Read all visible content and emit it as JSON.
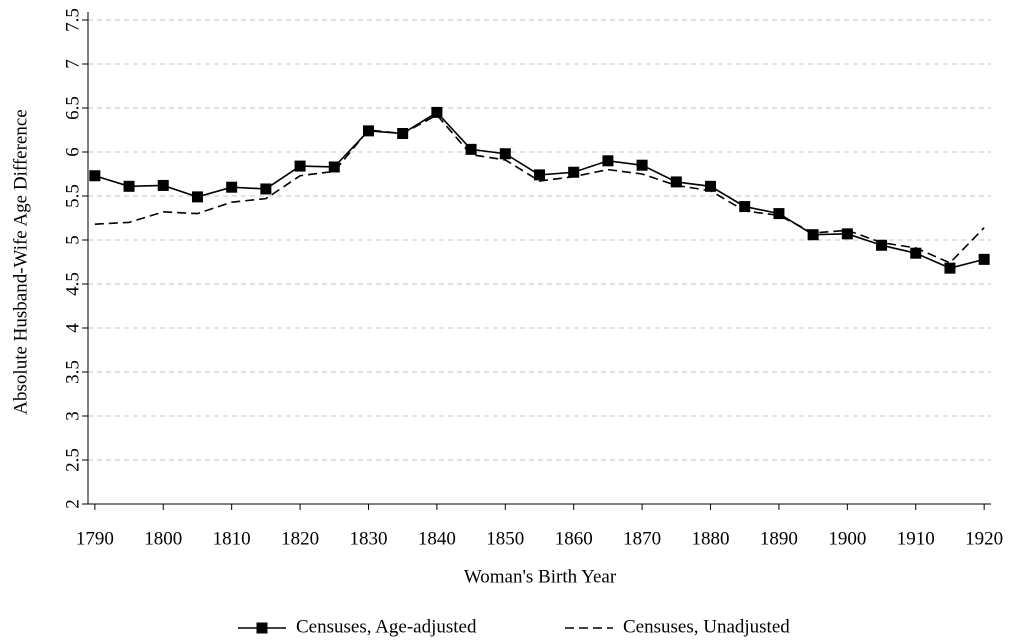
{
  "chart_data": {
    "type": "line",
    "x_label": "Woman's Birth Year",
    "y_label": "Absolute Husband-Wife Age Difference",
    "x": [
      1790,
      1795,
      1800,
      1805,
      1810,
      1815,
      1820,
      1825,
      1830,
      1835,
      1840,
      1845,
      1850,
      1855,
      1860,
      1865,
      1870,
      1875,
      1880,
      1885,
      1890,
      1895,
      1900,
      1905,
      1910,
      1915,
      1920
    ],
    "series": [
      {
        "name": "Censuses, Age-adjusted",
        "color": "#000000",
        "style": "solid",
        "marker": "square",
        "values": [
          5.73,
          5.61,
          5.62,
          5.49,
          5.6,
          5.58,
          5.84,
          5.83,
          6.24,
          6.21,
          6.45,
          6.03,
          5.98,
          5.74,
          5.77,
          5.9,
          5.85,
          5.66,
          5.61,
          5.38,
          5.3,
          5.06,
          5.07,
          4.94,
          4.85,
          4.68,
          4.78
        ]
      },
      {
        "name": "Censuses, Unadjusted",
        "color": "#000000",
        "style": "dashed",
        "values": [
          5.18,
          5.2,
          5.32,
          5.3,
          5.43,
          5.47,
          5.73,
          5.78,
          6.25,
          6.21,
          6.42,
          5.97,
          5.91,
          5.67,
          5.72,
          5.8,
          5.75,
          5.62,
          5.56,
          5.33,
          5.28,
          5.08,
          5.11,
          4.97,
          4.91,
          4.74,
          5.14
        ]
      }
    ],
    "xlim": [
      1789,
      1921
    ],
    "xticks": [
      1790,
      1800,
      1810,
      1820,
      1830,
      1840,
      1850,
      1860,
      1870,
      1880,
      1890,
      1900,
      1910,
      1920
    ],
    "ylim": [
      2,
      7.5
    ],
    "yticks": [
      2,
      2.5,
      3,
      3.5,
      4,
      4.5,
      5,
      5.5,
      6,
      6.5,
      7,
      7.5
    ],
    "grid": true,
    "legend": "bottom"
  }
}
